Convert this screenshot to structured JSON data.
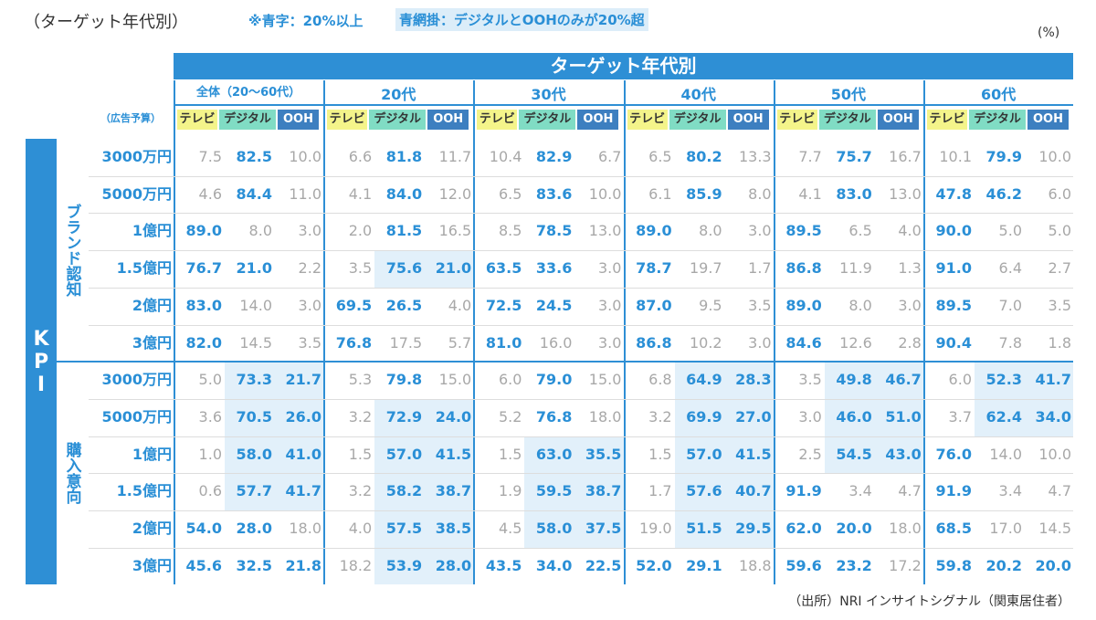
{
  "header": {
    "title": "（ターゲット年代別）",
    "note_blue": "※青字：20%以上",
    "note_shade": "青網掛：デジタルとOOHのみが20%超",
    "unit": "(%)"
  },
  "threshold": 20,
  "table": {
    "title": "ターゲット年代別",
    "budget_label": "（広告予算）",
    "kpi_label": "KPI",
    "groups": [
      "全体（20～60代）",
      "20代",
      "30代",
      "40代",
      "50代",
      "60代"
    ],
    "media": [
      "テレビ",
      "デジタル",
      "OOH"
    ],
    "sections": [
      {
        "label": "ブランド認知",
        "rows": [
          {
            "budget": "3000万円",
            "values": [
              "7.5",
              "82.5",
              "10.0",
              "6.6",
              "81.8",
              "11.7",
              "10.4",
              "82.9",
              "6.7",
              "6.5",
              "80.2",
              "13.3",
              "7.7",
              "75.7",
              "16.7",
              "10.1",
              "79.9",
              "10.0"
            ]
          },
          {
            "budget": "5000万円",
            "values": [
              "4.6",
              "84.4",
              "11.0",
              "4.1",
              "84.0",
              "12.0",
              "6.5",
              "83.6",
              "10.0",
              "6.1",
              "85.9",
              "8.0",
              "4.1",
              "83.0",
              "13.0",
              "47.8",
              "46.2",
              "6.0"
            ]
          },
          {
            "budget": "1億円",
            "values": [
              "89.0",
              "8.0",
              "3.0",
              "2.0",
              "81.5",
              "16.5",
              "8.5",
              "78.5",
              "13.0",
              "89.0",
              "8.0",
              "3.0",
              "89.5",
              "6.5",
              "4.0",
              "90.0",
              "5.0",
              "5.0"
            ]
          },
          {
            "budget": "1.5億円",
            "values": [
              "76.7",
              "21.0",
              "2.2",
              "3.5",
              "75.6",
              "21.0",
              "63.5",
              "33.6",
              "3.0",
              "78.7",
              "19.7",
              "1.7",
              "86.8",
              "11.9",
              "1.3",
              "91.0",
              "6.4",
              "2.7"
            ]
          },
          {
            "budget": "2億円",
            "values": [
              "83.0",
              "14.0",
              "3.0",
              "69.5",
              "26.5",
              "4.0",
              "72.5",
              "24.5",
              "3.0",
              "87.0",
              "9.5",
              "3.5",
              "89.0",
              "8.0",
              "3.0",
              "89.5",
              "7.0",
              "3.5"
            ]
          },
          {
            "budget": "3億円",
            "values": [
              "82.0",
              "14.5",
              "3.5",
              "76.8",
              "17.5",
              "5.7",
              "81.0",
              "16.0",
              "3.0",
              "86.8",
              "10.2",
              "3.0",
              "84.6",
              "12.6",
              "2.8",
              "90.4",
              "7.8",
              "1.8"
            ]
          }
        ]
      },
      {
        "label": "購入意向",
        "rows": [
          {
            "budget": "3000万円",
            "values": [
              "5.0",
              "73.3",
              "21.7",
              "5.3",
              "79.8",
              "15.0",
              "6.0",
              "79.0",
              "15.0",
              "6.8",
              "64.9",
              "28.3",
              "3.5",
              "49.8",
              "46.7",
              "6.0",
              "52.3",
              "41.7"
            ]
          },
          {
            "budget": "5000万円",
            "values": [
              "3.6",
              "70.5",
              "26.0",
              "3.2",
              "72.9",
              "24.0",
              "5.2",
              "76.8",
              "18.0",
              "3.2",
              "69.9",
              "27.0",
              "3.0",
              "46.0",
              "51.0",
              "3.7",
              "62.4",
              "34.0"
            ]
          },
          {
            "budget": "1億円",
            "values": [
              "1.0",
              "58.0",
              "41.0",
              "1.5",
              "57.0",
              "41.5",
              "1.5",
              "63.0",
              "35.5",
              "1.5",
              "57.0",
              "41.5",
              "2.5",
              "54.5",
              "43.0",
              "76.0",
              "14.0",
              "10.0"
            ]
          },
          {
            "budget": "1.5億円",
            "values": [
              "0.6",
              "57.7",
              "41.7",
              "3.2",
              "58.2",
              "38.7",
              "1.9",
              "59.5",
              "38.7",
              "1.7",
              "57.6",
              "40.7",
              "91.9",
              "3.4",
              "4.7",
              "91.9",
              "3.4",
              "4.7"
            ]
          },
          {
            "budget": "2億円",
            "values": [
              "54.0",
              "28.0",
              "18.0",
              "4.0",
              "57.5",
              "38.5",
              "4.5",
              "58.0",
              "37.5",
              "19.0",
              "51.5",
              "29.5",
              "62.0",
              "20.0",
              "18.0",
              "68.5",
              "17.0",
              "14.5"
            ]
          },
          {
            "budget": "3億円",
            "values": [
              "45.6",
              "32.5",
              "21.8",
              "18.2",
              "53.9",
              "28.0",
              "43.5",
              "34.0",
              "22.5",
              "52.0",
              "29.1",
              "18.8",
              "59.6",
              "23.2",
              "17.2",
              "59.8",
              "20.2",
              "20.0"
            ]
          }
        ]
      }
    ]
  },
  "footer": "（出所）NRI インサイトシグナル（関東居住者）"
}
